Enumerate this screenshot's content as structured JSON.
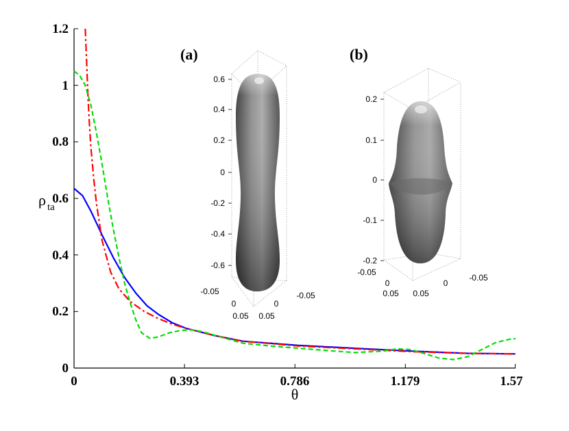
{
  "chart_data": {
    "type": "line",
    "xlabel": "θ",
    "ylabel": "ρ",
    "ylabel_sub": "ta",
    "xlim": [
      0,
      1.571
    ],
    "ylim": [
      0,
      1.2
    ],
    "xticks": [
      0,
      0.393,
      0.786,
      1.179,
      1.57
    ],
    "xtick_labels": [
      "0",
      "0.393",
      "0.786",
      "1.179",
      "1.57"
    ],
    "yticks": [
      0,
      0.2,
      0.4,
      0.6,
      0.8,
      1.0,
      1.2
    ],
    "ytick_labels": [
      "0",
      "0.2",
      "0.4",
      "0.6",
      "0.8",
      "1",
      "1.2"
    ],
    "series": [
      {
        "name": "blue-solid",
        "color": "#0000ff",
        "dash": "",
        "x": [
          0,
          0.03,
          0.06,
          0.1,
          0.14,
          0.18,
          0.22,
          0.26,
          0.3,
          0.35,
          0.4,
          0.5,
          0.6,
          0.8,
          1.0,
          1.2,
          1.4,
          1.571
        ],
        "y": [
          0.635,
          0.61,
          0.555,
          0.47,
          0.39,
          0.32,
          0.265,
          0.22,
          0.19,
          0.16,
          0.14,
          0.115,
          0.095,
          0.08,
          0.07,
          0.06,
          0.052,
          0.05
        ]
      },
      {
        "name": "red-dashdot",
        "color": "#ff0000",
        "dash": "11,4,3,4",
        "x": [
          0.04,
          0.045,
          0.05,
          0.055,
          0.06,
          0.07,
          0.08,
          0.1,
          0.13,
          0.16,
          0.2,
          0.25,
          0.3,
          0.35,
          0.4,
          0.5,
          0.6,
          0.8,
          1.0,
          1.2,
          1.4,
          1.571
        ],
        "y": [
          1.2,
          1.08,
          0.95,
          0.86,
          0.78,
          0.67,
          0.58,
          0.45,
          0.34,
          0.28,
          0.235,
          0.2,
          0.175,
          0.155,
          0.14,
          0.115,
          0.095,
          0.078,
          0.068,
          0.058,
          0.052,
          0.05
        ]
      },
      {
        "name": "green-dashed",
        "color": "#00dd00",
        "dash": "7,4",
        "x": [
          0,
          0.02,
          0.04,
          0.06,
          0.08,
          0.1,
          0.12,
          0.14,
          0.16,
          0.18,
          0.2,
          0.22,
          0.24,
          0.27,
          0.3,
          0.34,
          0.38,
          0.42,
          0.46,
          0.52,
          0.6,
          0.7,
          0.8,
          0.9,
          1.0,
          1.1,
          1.15,
          1.2,
          1.25,
          1.3,
          1.35,
          1.4,
          1.45,
          1.5,
          1.55,
          1.571
        ],
        "y": [
          1.05,
          1.035,
          1.0,
          0.93,
          0.83,
          0.72,
          0.6,
          0.49,
          0.39,
          0.3,
          0.23,
          0.17,
          0.125,
          0.105,
          0.11,
          0.125,
          0.133,
          0.135,
          0.128,
          0.11,
          0.088,
          0.078,
          0.07,
          0.062,
          0.055,
          0.06,
          0.068,
          0.065,
          0.05,
          0.035,
          0.03,
          0.04,
          0.065,
          0.09,
          0.102,
          0.104
        ]
      }
    ],
    "insets": [
      {
        "label": "(a)",
        "z_tick_labels": [
          "0.6",
          "0.4",
          "0.2",
          "0",
          "-0.2",
          "-0.4",
          "-0.6"
        ],
        "base_tick_labels": [
          "-0.05",
          "0",
          "0.05",
          "0.05",
          "0",
          "-0.05"
        ]
      },
      {
        "label": "(b)",
        "z_tick_labels": [
          "0.2",
          "0.1",
          "0",
          "-0.1",
          "-0.2"
        ],
        "base_tick_labels": [
          "-0.05",
          "0",
          "0.05",
          "0.05",
          "0",
          "-0.05"
        ]
      }
    ]
  }
}
